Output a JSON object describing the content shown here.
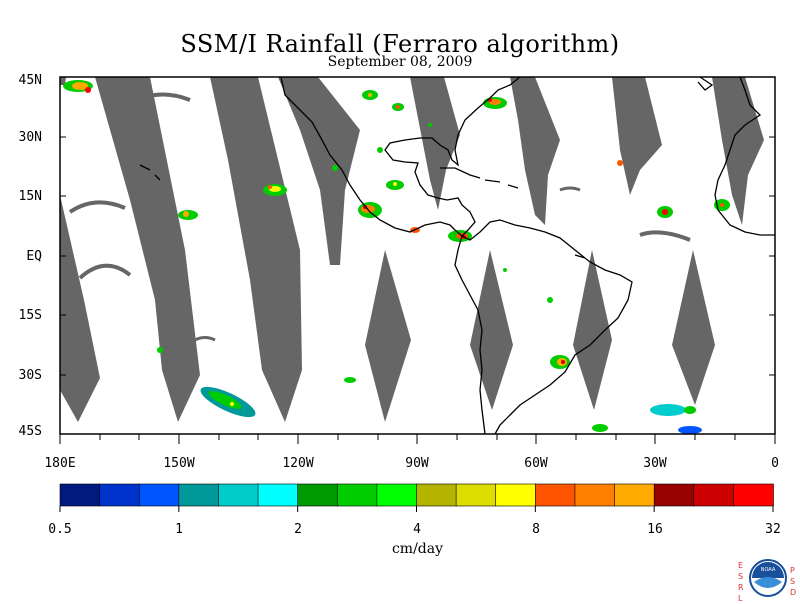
{
  "title": "SSM/I Rainfall (Ferraro algorithm)",
  "date": "September 08, 2009",
  "latitude_labels": [
    "45N",
    "30N",
    "15N",
    "EQ",
    "15S",
    "30S",
    "45S"
  ],
  "longitude_labels": [
    "180E",
    "150W",
    "120W",
    "90W",
    "60W",
    "30W",
    "0"
  ],
  "colorbar": {
    "units": "cm/day",
    "tick_labels": [
      "0.5",
      "1",
      "2",
      "4",
      "8",
      "16",
      "32"
    ],
    "colors": [
      "#001a80",
      "#0033cc",
      "#0055ff",
      "#009999",
      "#00cccc",
      "#00ffff",
      "#009900",
      "#00cc00",
      "#00ff00",
      "#b3b300",
      "#dddd00",
      "#ffff00",
      "#ff5500",
      "#ff8000",
      "#ffaa00",
      "#990000",
      "#cc0000",
      "#ff0000"
    ]
  },
  "swath_gap_color": "#666666",
  "logo": {
    "text": "NOAA",
    "left_letters": [
      "E",
      "S",
      "R",
      "L"
    ],
    "right_letters": [
      "P",
      "S",
      "D"
    ]
  }
}
